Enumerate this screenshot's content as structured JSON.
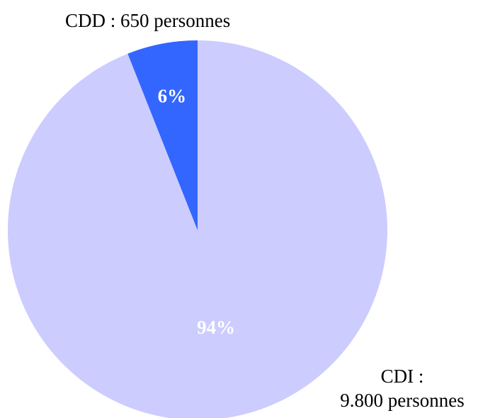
{
  "chart_data": {
    "type": "pie",
    "slices": [
      {
        "label": "CDD",
        "count_text": "650 personnes",
        "value": 650,
        "percent": 6,
        "percent_label": "6%",
        "color": "#3366ff"
      },
      {
        "label": "CDI",
        "count_text": "9.800 personnes",
        "value": 9800,
        "percent": 94,
        "percent_label": "94%",
        "color": "#ccccff"
      }
    ],
    "start_angle_deg": 0,
    "direction": "counterclockwise-from-top-for-first-slice"
  },
  "labels": {
    "cdd": "CDD : 650 personnes",
    "cdi_line1": "CDI :",
    "cdi_line2": "9.800 personnes"
  }
}
